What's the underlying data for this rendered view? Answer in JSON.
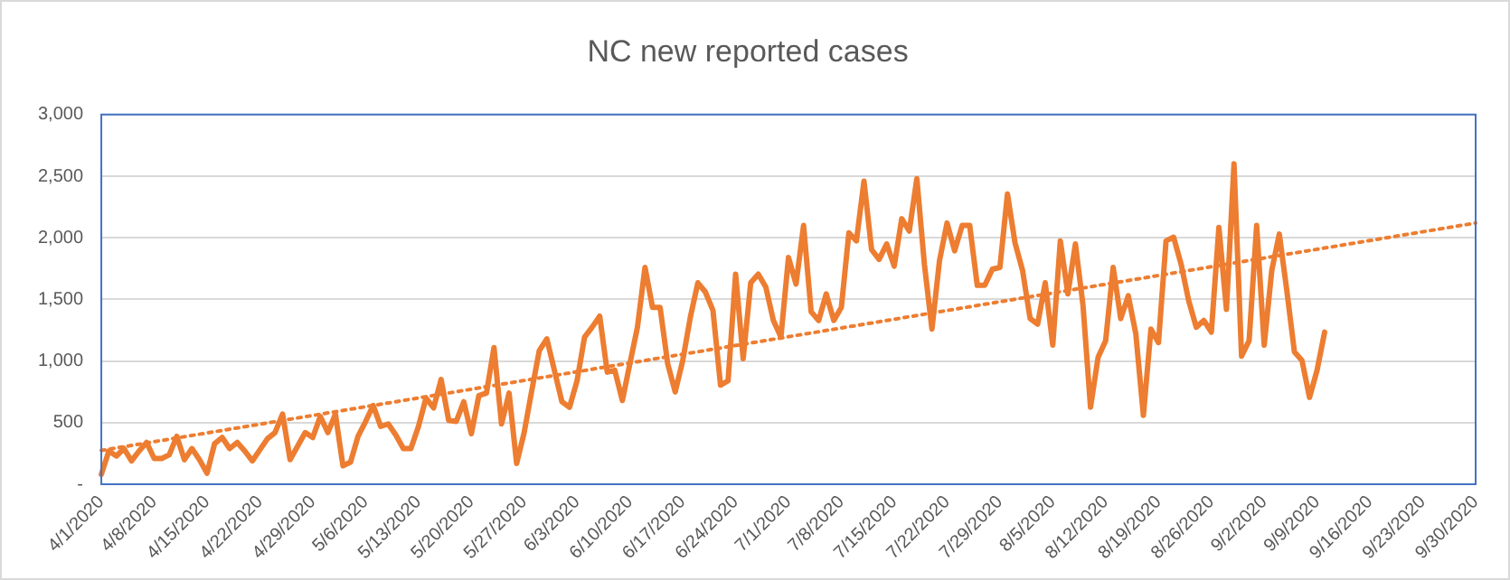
{
  "chart_data": {
    "type": "line",
    "title": "NC new reported cases",
    "categories": [
      "4/1/2020",
      null,
      null,
      null,
      null,
      null,
      null,
      "4/8/2020",
      null,
      null,
      null,
      null,
      null,
      null,
      "4/15/2020",
      null,
      null,
      null,
      null,
      null,
      null,
      "4/22/2020",
      null,
      null,
      null,
      null,
      null,
      null,
      "4/29/2020",
      null,
      null,
      null,
      null,
      null,
      null,
      "5/6/2020",
      null,
      null,
      null,
      null,
      null,
      null,
      "5/13/2020",
      null,
      null,
      null,
      null,
      null,
      null,
      "5/20/2020",
      null,
      null,
      null,
      null,
      null,
      null,
      "5/27/2020",
      null,
      null,
      null,
      null,
      null,
      null,
      "6/3/2020",
      null,
      null,
      null,
      null,
      null,
      null,
      "6/10/2020",
      null,
      null,
      null,
      null,
      null,
      null,
      "6/17/2020",
      null,
      null,
      null,
      null,
      null,
      null,
      "6/24/2020",
      null,
      null,
      null,
      null,
      null,
      null,
      "7/1/2020",
      null,
      null,
      null,
      null,
      null,
      null,
      "7/8/2020",
      null,
      null,
      null,
      null,
      null,
      null,
      "7/15/2020",
      null,
      null,
      null,
      null,
      null,
      null,
      "7/22/2020",
      null,
      null,
      null,
      null,
      null,
      null,
      "7/29/2020",
      null,
      null,
      null,
      null,
      null,
      null,
      "8/5/2020",
      null,
      null,
      null,
      null,
      null,
      null,
      "8/12/2020",
      null,
      null,
      null,
      null,
      null,
      null,
      "8/19/2020",
      null,
      null,
      null,
      null,
      null,
      null,
      "8/26/2020",
      null,
      null,
      null,
      null,
      null,
      null,
      "9/2/2020",
      null,
      null,
      null,
      null,
      null,
      null,
      "9/9/2020",
      null,
      null,
      null,
      null,
      null,
      null,
      "9/16/2020",
      null,
      null,
      null,
      null,
      null,
      null,
      "9/23/2020",
      null,
      null,
      null,
      null,
      null,
      null,
      "9/30/2020"
    ],
    "series": [
      {
        "color": "#ed7d31",
        "line_style": "solid",
        "values": [
          80,
          270,
          230,
          290,
          190,
          270,
          340,
          210,
          210,
          240,
          390,
          200,
          290,
          200,
          90,
          330,
          380,
          290,
          340,
          270,
          190,
          280,
          370,
          420,
          570,
          200,
          310,
          420,
          380,
          550,
          420,
          570,
          150,
          180,
          390,
          510,
          640,
          470,
          490,
          400,
          290,
          290,
          470,
          700,
          620,
          850,
          520,
          510,
          670,
          410,
          720,
          740,
          1110,
          490,
          740,
          170,
          420,
          760,
          1085,
          1180,
          925,
          670,
          625,
          840,
          1195,
          1275,
          1365,
          910,
          925,
          680,
          980,
          1275,
          1760,
          1435,
          1435,
          980,
          750,
          1005,
          1355,
          1635,
          1560,
          1410,
          805,
          840,
          1705,
          1020,
          1635,
          1705,
          1600,
          1330,
          1195,
          1840,
          1625,
          2100,
          1400,
          1330,
          1545,
          1330,
          1435,
          2040,
          1975,
          2460,
          1905,
          1825,
          1950,
          1770,
          2155,
          2055,
          2480,
          1785,
          1260,
          1815,
          2120,
          1895,
          2100,
          2100,
          1615,
          1615,
          1745,
          1760,
          2355,
          1960,
          1735,
          1345,
          1300,
          1635,
          1130,
          1975,
          1545,
          1950,
          1455,
          625,
          1030,
          1165,
          1760,
          1345,
          1530,
          1220,
          560,
          1260,
          1150,
          1975,
          2005,
          1785,
          1490,
          1275,
          1330,
          1235,
          2085,
          1420,
          2600,
          1040,
          1165,
          2100,
          1130,
          1735,
          2030,
          1570,
          1075,
          1005,
          705,
          925,
          1235,
          null,
          null,
          null,
          null,
          null,
          null,
          null,
          null,
          null,
          null,
          null,
          null,
          null,
          null,
          null,
          null,
          null,
          null,
          null,
          null
        ]
      },
      {
        "color": "#ed7d31",
        "line_style": "dotted",
        "values": [
          275,
          null,
          null,
          null,
          null,
          null,
          null,
          null,
          null,
          null,
          null,
          null,
          null,
          null,
          null,
          null,
          null,
          null,
          null,
          null,
          null,
          null,
          null,
          null,
          null,
          null,
          null,
          null,
          null,
          null,
          null,
          null,
          null,
          null,
          null,
          null,
          null,
          null,
          null,
          null,
          null,
          null,
          null,
          null,
          null,
          null,
          null,
          null,
          null,
          null,
          null,
          null,
          null,
          null,
          null,
          null,
          null,
          null,
          null,
          null,
          null,
          null,
          null,
          null,
          null,
          null,
          null,
          null,
          null,
          null,
          null,
          null,
          null,
          null,
          null,
          null,
          null,
          null,
          null,
          null,
          null,
          null,
          null,
          null,
          null,
          null,
          null,
          null,
          null,
          null,
          null,
          null,
          null,
          null,
          null,
          null,
          null,
          null,
          null,
          null,
          null,
          null,
          null,
          null,
          null,
          null,
          null,
          null,
          null,
          null,
          null,
          null,
          null,
          null,
          null,
          null,
          null,
          null,
          null,
          null,
          null,
          null,
          null,
          null,
          null,
          null,
          null,
          null,
          null,
          null,
          null,
          null,
          null,
          null,
          null,
          null,
          null,
          null,
          null,
          null,
          null,
          null,
          null,
          null,
          null,
          null,
          null,
          null,
          null,
          null,
          null,
          null,
          null,
          null,
          null,
          null,
          null,
          null,
          null,
          null,
          null,
          null,
          null,
          null,
          null,
          null,
          null,
          null,
          null,
          null,
          null,
          null,
          null,
          null,
          null,
          null,
          null,
          null,
          null,
          null,
          null,
          null,
          2120
        ]
      }
    ],
    "ylim": [
      0,
      3000
    ],
    "yticks": [
      {
        "value": 0,
        "label": "-"
      },
      {
        "value": 500,
        "label": "500"
      },
      {
        "value": 1000,
        "label": "1,000"
      },
      {
        "value": 1500,
        "label": "1,500"
      },
      {
        "value": 2000,
        "label": "2,000"
      },
      {
        "value": 2500,
        "label": "2,500"
      },
      {
        "value": 3000,
        "label": "3,000"
      }
    ],
    "grid": "y",
    "marker": "none"
  }
}
